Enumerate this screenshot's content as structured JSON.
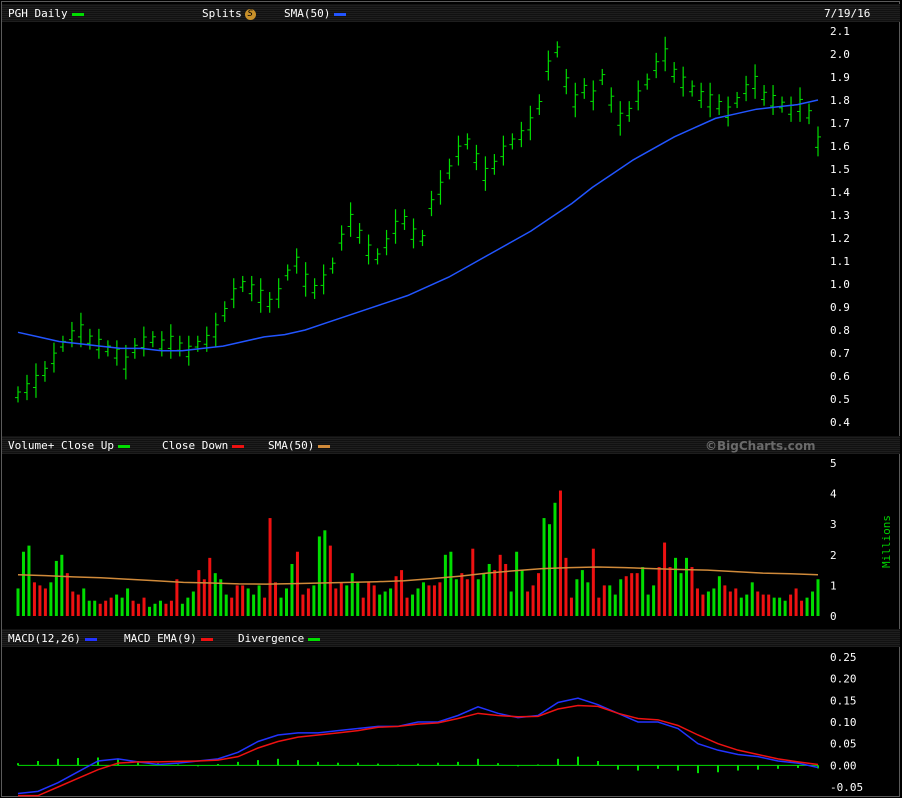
{
  "price_panel": {
    "symbol_label": "PGH Daily",
    "splits_label": "Splits",
    "splits_icon": "S",
    "sma_label": "SMA(50)",
    "date": "7/19/16",
    "colors": {
      "price": "#00dd00",
      "sma": "#2255ff"
    }
  },
  "volume_panel": {
    "label": "Volume+",
    "close_up_label": "Close Up",
    "close_down_label": "Close Down",
    "sma_label": "SMA(50)",
    "watermark": "©BigCharts.com",
    "unit_label": "Millions",
    "colors": {
      "up": "#00dd00",
      "down": "#ee1111",
      "sma": "#d08a3a"
    }
  },
  "macd_panel": {
    "macd_label": "MACD(12,26)",
    "ema_label": "MACD EMA(9)",
    "divergence_label": "Divergence",
    "colors": {
      "macd": "#2233ff",
      "ema": "#ee1111",
      "divergence": "#00dd00"
    }
  },
  "chart_data": [
    {
      "type": "line",
      "title": "PGH Daily",
      "y_ticks": [
        "2.1",
        "2.0",
        "1.9",
        "1.8",
        "1.7",
        "1.6",
        "1.5",
        "1.4",
        "1.3",
        "1.2",
        "1.1",
        "1.0",
        "0.9",
        "0.8",
        "0.7",
        "0.6",
        "0.5",
        "0.4"
      ],
      "ylim": [
        0.4,
        2.1
      ],
      "series": [
        {
          "name": "PGH Daily",
          "style": "ohlc-ticks",
          "values": [
            0.52,
            0.55,
            0.58,
            0.62,
            0.68,
            0.74,
            0.78,
            0.8,
            0.76,
            0.74,
            0.72,
            0.7,
            0.66,
            0.72,
            0.75,
            0.76,
            0.74,
            0.75,
            0.73,
            0.71,
            0.74,
            0.76,
            0.8,
            0.88,
            0.96,
            1.0,
            0.98,
            0.95,
            0.92,
            0.96,
            1.05,
            1.1,
            1.02,
            0.98,
            1.02,
            1.08,
            1.2,
            1.28,
            1.22,
            1.15,
            1.12,
            1.18,
            1.25,
            1.28,
            1.22,
            1.2,
            1.35,
            1.42,
            1.5,
            1.58,
            1.62,
            1.55,
            1.48,
            1.52,
            1.58,
            1.62,
            1.65,
            1.7,
            1.78,
            1.95,
            2.02,
            1.88,
            1.8,
            1.85,
            1.82,
            1.9,
            1.8,
            1.72,
            1.75,
            1.82,
            1.88,
            1.95,
            2.0,
            1.92,
            1.88,
            1.85,
            1.82,
            1.8,
            1.78,
            1.75,
            1.8,
            1.85,
            1.88,
            1.82,
            1.8,
            1.78,
            1.76,
            1.78,
            1.74,
            1.62
          ]
        },
        {
          "name": "SMA(50)",
          "values": [
            0.79,
            0.77,
            0.75,
            0.74,
            0.73,
            0.72,
            0.72,
            0.71,
            0.71,
            0.72,
            0.73,
            0.75,
            0.77,
            0.78,
            0.8,
            0.83,
            0.86,
            0.89,
            0.92,
            0.95,
            0.99,
            1.03,
            1.08,
            1.13,
            1.18,
            1.23,
            1.29,
            1.35,
            1.42,
            1.48,
            1.54,
            1.59,
            1.64,
            1.68,
            1.72,
            1.74,
            1.76,
            1.77,
            1.78,
            1.8
          ]
        }
      ]
    },
    {
      "type": "bar",
      "title": "Volume+",
      "y_ticks": [
        "5",
        "4",
        "3",
        "2",
        "1",
        "0"
      ],
      "ylim": [
        0,
        5
      ],
      "ylabel": "Millions",
      "series": [
        {
          "name": "Close Up / Close Down",
          "values": [
            0.9,
            2.1,
            2.3,
            1.1,
            1.0,
            0.9,
            1.1,
            1.8,
            2.0,
            1.4,
            0.8,
            0.7,
            0.9,
            0.5,
            0.5,
            0.4,
            0.5,
            0.6,
            0.7,
            0.6,
            0.9,
            0.5,
            0.4,
            0.6,
            0.3,
            0.4,
            0.5,
            0.4,
            0.5,
            1.2,
            0.4,
            0.6,
            0.8,
            1.5,
            1.2,
            1.9,
            1.4,
            1.2,
            0.7,
            0.6,
            1.0,
            1.0,
            0.9,
            0.7,
            1.0,
            0.6,
            3.2,
            1.1,
            0.6,
            0.9,
            1.7,
            2.1,
            0.7,
            0.9,
            1.0,
            2.6,
            2.8,
            2.3,
            0.9,
            1.1,
            1.0,
            1.4,
            1.1,
            0.6,
            1.1,
            1.0,
            0.7,
            0.8,
            0.9,
            1.3,
            1.5,
            0.6,
            0.7,
            0.9,
            1.1,
            1.0,
            1.0,
            1.1,
            2.0,
            2.1,
            1.2,
            1.4,
            1.2,
            2.2,
            1.2,
            1.4,
            1.7,
            1.5,
            2.0,
            1.7,
            0.8,
            2.1,
            1.5,
            0.8,
            1.0,
            1.4,
            3.2,
            3.0,
            3.7,
            4.1,
            1.9,
            0.6,
            1.2,
            1.5,
            1.1,
            2.2,
            0.6,
            1.0,
            1.0,
            0.7,
            1.2,
            1.3,
            1.4,
            1.4,
            1.6,
            0.7,
            1.0,
            1.6,
            2.4,
            1.6,
            1.9,
            1.4,
            1.9,
            1.6,
            0.9,
            0.7,
            0.8,
            0.9,
            1.3,
            1.0,
            0.8,
            0.9,
            0.6,
            0.7,
            1.1,
            0.8,
            0.7,
            0.7,
            0.6,
            0.6,
            0.5,
            0.7,
            0.9,
            0.5,
            0.6,
            0.8,
            1.2
          ]
        },
        {
          "name": "SMA(50)",
          "values": [
            1.35,
            1.32,
            1.28,
            1.25,
            1.2,
            1.15,
            1.1,
            1.08,
            1.05,
            1.04,
            1.06,
            1.08,
            1.1,
            1.12,
            1.15,
            1.22,
            1.3,
            1.4,
            1.48,
            1.55,
            1.58,
            1.6,
            1.58,
            1.55,
            1.52,
            1.5,
            1.45,
            1.4,
            1.38,
            1.35
          ]
        }
      ]
    },
    {
      "type": "line",
      "title": "MACD(12,26)",
      "y_ticks": [
        "0.25",
        "0.20",
        "0.15",
        "0.10",
        "0.05",
        "0.00",
        "-0.05"
      ],
      "ylim": [
        -0.05,
        0.25
      ],
      "series": [
        {
          "name": "MACD(12,26)",
          "values": [
            -0.065,
            -0.06,
            -0.04,
            -0.015,
            0.01,
            0.015,
            0.008,
            0.002,
            0.005,
            0.01,
            0.015,
            0.03,
            0.055,
            0.07,
            0.075,
            0.075,
            0.08,
            0.085,
            0.09,
            0.09,
            0.1,
            0.1,
            0.115,
            0.135,
            0.12,
            0.11,
            0.115,
            0.145,
            0.155,
            0.14,
            0.12,
            0.1,
            0.1,
            0.085,
            0.05,
            0.035,
            0.025,
            0.02,
            0.01,
            0.005,
            -0.005
          ]
        },
        {
          "name": "MACD EMA(9)",
          "values": [
            -0.07,
            -0.07,
            -0.05,
            -0.03,
            -0.01,
            0.005,
            0.008,
            0.008,
            0.009,
            0.01,
            0.012,
            0.02,
            0.04,
            0.055,
            0.065,
            0.07,
            0.075,
            0.08,
            0.088,
            0.09,
            0.095,
            0.098,
            0.108,
            0.12,
            0.115,
            0.112,
            0.113,
            0.13,
            0.138,
            0.136,
            0.12,
            0.108,
            0.105,
            0.092,
            0.07,
            0.05,
            0.035,
            0.025,
            0.015,
            0.008,
            0.002
          ]
        },
        {
          "name": "Divergence",
          "values": [
            0.005,
            0.01,
            0.015,
            0.017,
            0.018,
            0.015,
            0.01,
            0.005,
            0.002,
            0.0,
            0.003,
            0.008,
            0.012,
            0.015,
            0.012,
            0.008,
            0.006,
            0.006,
            0.004,
            0.002,
            0.004,
            0.006,
            0.008,
            0.015,
            0.005,
            -0.002,
            0.002,
            0.015,
            0.02,
            0.01,
            -0.01,
            -0.012,
            -0.008,
            -0.012,
            -0.018,
            -0.016,
            -0.012,
            -0.01,
            -0.008,
            -0.006,
            -0.007
          ]
        }
      ]
    }
  ]
}
